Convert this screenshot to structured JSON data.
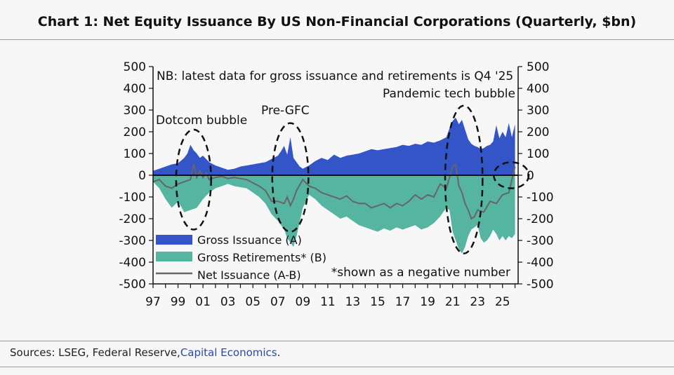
{
  "title": "Chart 1: Net Equity Issuance By US Non-Financial Corporations (Quarterly, $bn)",
  "sources": {
    "prefix": "Sources: LSEG, Federal Reserve,",
    "link": "Capital Economics",
    "suffix": "."
  },
  "chart_data": {
    "type": "area",
    "title": "",
    "xlabel": "",
    "ylabel": "",
    "ylim": [
      -500,
      500
    ],
    "xlim": [
      1997,
      2026.25
    ],
    "y_ticks": [
      500,
      400,
      300,
      200,
      100,
      0,
      -100,
      -200,
      -300,
      -400,
      -500
    ],
    "x_ticks": [
      {
        "label": "97",
        "year": 1997
      },
      {
        "label": "99",
        "year": 1999
      },
      {
        "label": "01",
        "year": 2001
      },
      {
        "label": "03",
        "year": 2003
      },
      {
        "label": "05",
        "year": 2005
      },
      {
        "label": "07",
        "year": 2007
      },
      {
        "label": "09",
        "year": 2009
      },
      {
        "label": "11",
        "year": 2011
      },
      {
        "label": "13",
        "year": 2013
      },
      {
        "label": "15",
        "year": 2015
      },
      {
        "label": "17",
        "year": 2017
      },
      {
        "label": "19",
        "year": 2019
      },
      {
        "label": "21",
        "year": 2021
      },
      {
        "label": "23",
        "year": 2023
      },
      {
        "label": "25",
        "year": 2025
      }
    ],
    "legend": "bottom-left",
    "grid": false,
    "colors": {
      "gross": "#3355c8",
      "retire": "#55b5a0",
      "net": "#666666",
      "ellipse": "#111111"
    },
    "series": [
      {
        "name": "Gross Issuance (A)",
        "x": [
          1997.0,
          1997.5,
          1998.0,
          1998.5,
          1999.0,
          1999.5,
          1999.75,
          2000.0,
          2000.25,
          2000.5,
          2000.75,
          2001.0,
          2001.5,
          2002.0,
          2002.5,
          2003.0,
          2003.5,
          2004.0,
          2004.5,
          2005.0,
          2005.5,
          2006.0,
          2006.5,
          2007.0,
          2007.25,
          2007.5,
          2007.75,
          2008.0,
          2008.25,
          2008.5,
          2008.75,
          2009.0,
          2009.5,
          2010.0,
          2010.5,
          2011.0,
          2011.5,
          2012.0,
          2012.5,
          2013.0,
          2013.5,
          2014.0,
          2014.5,
          2015.0,
          2015.5,
          2016.0,
          2016.5,
          2017.0,
          2017.5,
          2018.0,
          2018.5,
          2019.0,
          2019.5,
          2020.0,
          2020.5,
          2020.75,
          2021.0,
          2021.25,
          2021.5,
          2021.75,
          2022.0,
          2022.25,
          2022.5,
          2022.75,
          2023.0,
          2023.25,
          2023.5,
          2023.75,
          2024.0,
          2024.25,
          2024.5,
          2024.75,
          2025.0,
          2025.25,
          2025.5,
          2025.75,
          2026.0
        ],
        "values": [
          20,
          30,
          40,
          50,
          55,
          80,
          100,
          140,
          115,
          100,
          80,
          90,
          60,
          45,
          35,
          25,
          30,
          40,
          45,
          50,
          55,
          60,
          75,
          90,
          110,
          135,
          95,
          175,
          80,
          60,
          40,
          30,
          45,
          65,
          80,
          70,
          95,
          80,
          90,
          95,
          100,
          110,
          120,
          115,
          120,
          125,
          130,
          140,
          135,
          145,
          140,
          155,
          150,
          160,
          175,
          215,
          250,
          265,
          235,
          255,
          210,
          165,
          145,
          135,
          130,
          120,
          125,
          135,
          140,
          155,
          230,
          170,
          200,
          175,
          240,
          175,
          235
        ]
      },
      {
        "name": "Gross Retirements* (B)",
        "x": [
          1997.0,
          1997.5,
          1998.0,
          1998.5,
          1999.0,
          1999.5,
          2000.0,
          2000.5,
          2001.0,
          2001.5,
          2002.0,
          2002.5,
          2003.0,
          2003.5,
          2004.0,
          2004.5,
          2005.0,
          2005.5,
          2006.0,
          2006.5,
          2007.0,
          2007.5,
          2007.75,
          2008.0,
          2008.25,
          2008.5,
          2009.0,
          2009.5,
          2010.0,
          2010.5,
          2011.0,
          2011.5,
          2012.0,
          2012.5,
          2013.0,
          2013.5,
          2014.0,
          2014.5,
          2015.0,
          2015.5,
          2016.0,
          2016.5,
          2017.0,
          2017.5,
          2018.0,
          2018.5,
          2019.0,
          2019.5,
          2020.0,
          2020.5,
          2020.75,
          2021.0,
          2021.25,
          2021.5,
          2021.75,
          2022.0,
          2022.25,
          2022.5,
          2022.75,
          2023.0,
          2023.25,
          2023.5,
          2023.75,
          2024.0,
          2024.25,
          2024.5,
          2024.75,
          2025.0,
          2025.25,
          2025.5,
          2025.75,
          2026.0
        ],
        "values": [
          -30,
          -60,
          -110,
          -150,
          -120,
          -170,
          -160,
          -150,
          -110,
          -80,
          -60,
          -50,
          -40,
          -50,
          -55,
          -60,
          -80,
          -100,
          -130,
          -180,
          -210,
          -250,
          -290,
          -310,
          -330,
          -280,
          -150,
          -90,
          -110,
          -140,
          -160,
          -180,
          -200,
          -190,
          -210,
          -230,
          -240,
          -250,
          -260,
          -245,
          -255,
          -240,
          -250,
          -240,
          -230,
          -250,
          -240,
          -220,
          -190,
          -150,
          -160,
          -260,
          -300,
          -340,
          -360,
          -330,
          -280,
          -250,
          -240,
          -230,
          -290,
          -310,
          -300,
          -280,
          -250,
          -270,
          -300,
          -280,
          -300,
          -280,
          -290,
          -270
        ]
      },
      {
        "name": "Net Issuance (A-B)",
        "x": [
          1997.0,
          1997.5,
          1998.0,
          1998.5,
          1999.0,
          1999.5,
          2000.0,
          2000.25,
          2000.5,
          2000.75,
          2001.0,
          2001.25,
          2001.5,
          2002.0,
          2002.5,
          2003.0,
          2003.5,
          2004.0,
          2004.5,
          2005.0,
          2005.5,
          2006.0,
          2006.5,
          2007.0,
          2007.5,
          2007.75,
          2008.0,
          2008.25,
          2008.5,
          2009.0,
          2009.5,
          2010.0,
          2010.5,
          2011.0,
          2011.5,
          2012.0,
          2012.5,
          2013.0,
          2013.5,
          2014.0,
          2014.5,
          2015.0,
          2015.5,
          2016.0,
          2016.5,
          2017.0,
          2017.5,
          2018.0,
          2018.5,
          2019.0,
          2019.5,
          2020.0,
          2020.5,
          2021.0,
          2021.25,
          2021.5,
          2021.75,
          2022.0,
          2022.25,
          2022.5,
          2022.75,
          2023.0,
          2023.5,
          2024.0,
          2024.5,
          2025.0,
          2025.5,
          2026.0
        ],
        "values": [
          -30,
          -20,
          -50,
          -60,
          -40,
          -30,
          -20,
          50,
          -10,
          20,
          -10,
          10,
          -20,
          -10,
          -5,
          -15,
          -10,
          -15,
          -20,
          -35,
          -50,
          -70,
          -120,
          -120,
          -130,
          -100,
          -140,
          -110,
          -70,
          -20,
          -50,
          -60,
          -80,
          -90,
          -100,
          -110,
          -95,
          -120,
          -130,
          -130,
          -150,
          -140,
          -130,
          -150,
          -130,
          -140,
          -120,
          -90,
          -110,
          -90,
          -100,
          -40,
          -60,
          40,
          50,
          -50,
          -80,
          -130,
          -160,
          -200,
          -190,
          -160,
          -170,
          -120,
          -130,
          -90,
          -80,
          40
        ]
      }
    ],
    "annotations": [
      {
        "text": "NB: latest data for gross issuance and retirements is Q4 '25"
      },
      {
        "text": "Pandemic tech bubble"
      },
      {
        "text": "Dotcom bubble"
      },
      {
        "text": "Pre-GFC"
      },
      {
        "text": "*shown as a negative number"
      }
    ]
  }
}
